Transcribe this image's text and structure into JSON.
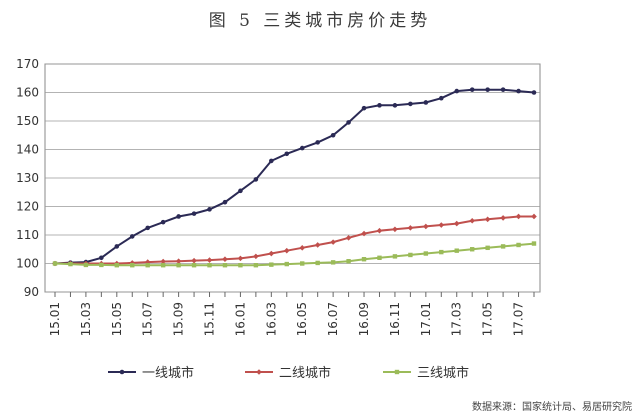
{
  "figure": {
    "title": "图 5      三类城市房价走势",
    "source": "数据来源：国家统计局、易居研究院"
  },
  "chart_data": {
    "type": "line",
    "title": "图 5 三类城市房价走势",
    "xlabel": "",
    "ylabel": "",
    "ylim": [
      90,
      170
    ],
    "yticks": [
      90,
      100,
      110,
      120,
      130,
      140,
      150,
      160,
      170
    ],
    "grid": true,
    "legend_position": "bottom",
    "categories": [
      "15.01",
      "15.02",
      "15.03",
      "15.04",
      "15.05",
      "15.06",
      "15.07",
      "15.08",
      "15.09",
      "15.10",
      "15.11",
      "15.12",
      "16.01",
      "16.02",
      "16.03",
      "16.04",
      "16.05",
      "16.06",
      "16.07",
      "16.08",
      "16.09",
      "16.10",
      "16.11",
      "16.12",
      "17.01",
      "17.02",
      "17.03",
      "17.04",
      "17.05",
      "17.06",
      "17.07",
      "17.08"
    ],
    "x_tick_labels": [
      "15.01",
      "15.03",
      "15.05",
      "15.07",
      "15.09",
      "15.11",
      "16.01",
      "16.03",
      "16.05",
      "16.07",
      "16.09",
      "16.11",
      "17.01",
      "17.03",
      "17.05",
      "17.07"
    ],
    "series": [
      {
        "name": "一线城市",
        "color": "#2b2a55",
        "marker": "circle",
        "values": [
          100,
          100.3,
          100.5,
          102,
          106,
          109.5,
          112.5,
          114.5,
          116.5,
          117.5,
          119,
          121.5,
          125.5,
          129.5,
          136,
          138.5,
          140.5,
          142.5,
          145,
          149.5,
          154.5,
          155.5,
          155.5,
          156,
          156.5,
          158,
          160.5,
          161,
          161,
          161,
          160.5,
          160
        ]
      },
      {
        "name": "二线城市",
        "color": "#c0504d",
        "marker": "diamond",
        "values": [
          100,
          100,
          100,
          100,
          100,
          100.2,
          100.5,
          100.7,
          100.8,
          101,
          101.2,
          101.5,
          101.8,
          102.5,
          103.5,
          104.5,
          105.5,
          106.5,
          107.5,
          109,
          110.5,
          111.5,
          112,
          112.5,
          113,
          113.5,
          114,
          115,
          115.5,
          116,
          116.5,
          116.5
        ]
      },
      {
        "name": "三线城市",
        "color": "#9bbb59",
        "marker": "square",
        "values": [
          100,
          99.8,
          99.5,
          99.5,
          99.4,
          99.4,
          99.4,
          99.4,
          99.4,
          99.4,
          99.4,
          99.4,
          99.4,
          99.4,
          99.6,
          99.8,
          100,
          100.2,
          100.4,
          100.8,
          101.5,
          102,
          102.5,
          103,
          103.5,
          104,
          104.5,
          105,
          105.5,
          106,
          106.5,
          107
        ]
      }
    ]
  }
}
